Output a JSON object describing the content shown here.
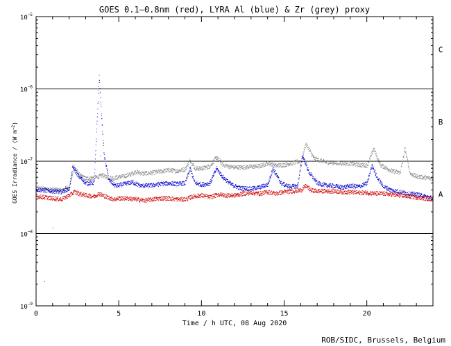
{
  "chart_data": {
    "type": "scatter",
    "title": "GOES 0.1–0.8nm (red), LYRA Al (blue) & Zr (grey) proxy",
    "xlabel": "Time / h UTC, 08 Aug 2020",
    "ylabel": "GOES Irradiance / (W m⁻²)",
    "ylabel_base": "GOES Irradiance / (W m",
    "ylabel_exp": "−2",
    "ylabel_end": ")",
    "credit": "ROB/SIDC, Brussels, Belgium",
    "xlim": [
      0,
      24
    ],
    "ylim": [
      1e-09,
      1e-05
    ],
    "yscale": "log",
    "x_ticks": [
      {
        "value": 0,
        "label": "0"
      },
      {
        "value": 5,
        "label": "5"
      },
      {
        "value": 10,
        "label": "10"
      },
      {
        "value": 15,
        "label": "15"
      },
      {
        "value": 20,
        "label": "20"
      }
    ],
    "y_ticks": [
      {
        "value": 1e-05,
        "base": "10",
        "exp": "−5"
      },
      {
        "value": 1e-06,
        "base": "10",
        "exp": "−6"
      },
      {
        "value": 1e-07,
        "base": "10",
        "exp": "−7"
      },
      {
        "value": 1e-08,
        "base": "10",
        "exp": "−8"
      },
      {
        "value": 1e-09,
        "base": "10",
        "exp": "−9"
      }
    ],
    "flare_levels": [
      {
        "value": 1e-06,
        "label": "C"
      },
      {
        "value": 1e-07,
        "label": "B"
      },
      {
        "value": 1e-08,
        "label": "A"
      }
    ],
    "series": [
      {
        "name": "LYRA Zr proxy",
        "color": "#888888",
        "x": [
          0,
          0.5,
          1,
          1.5,
          2,
          2.3,
          2.6,
          3,
          3.5,
          3.8,
          4,
          4.3,
          4.7,
          5,
          5.5,
          6,
          6.5,
          7,
          7.5,
          8,
          8.5,
          9,
          9.3,
          9.6,
          10,
          10.5,
          10.9,
          11.3,
          11.8,
          12.3,
          13,
          13.5,
          14,
          14.5,
          15,
          15.5,
          16,
          16.3,
          16.8,
          17.5,
          18,
          18.5,
          19,
          19.5,
          20,
          20.4,
          20.8,
          21.5,
          22,
          22.3,
          22.6,
          23,
          23.5,
          24
        ],
        "y": [
          4.3e-08,
          4.2e-08,
          4.1e-08,
          4e-08,
          4.5e-08,
          8.5e-08,
          6.5e-08,
          5.8e-08,
          6e-08,
          6.2e-08,
          6.5e-08,
          6e-08,
          5.9e-08,
          6.1e-08,
          6.4e-08,
          7.2e-08,
          6.8e-08,
          7e-08,
          7.3e-08,
          7.6e-08,
          7.4e-08,
          7.8e-08,
          1.05e-07,
          8e-08,
          8e-08,
          8.6e-08,
          1.15e-07,
          9e-08,
          8.4e-08,
          8.3e-08,
          8.5e-08,
          8.6e-08,
          9.5e-08,
          8.8e-08,
          9e-08,
          9.6e-08,
          1.02e-07,
          1.75e-07,
          1.1e-07,
          9.8e-08,
          9.6e-08,
          9.5e-08,
          9.4e-08,
          9e-08,
          8.8e-08,
          1.5e-07,
          9e-08,
          7.4e-08,
          7e-08,
          1.5e-07,
          6.8e-08,
          6.2e-08,
          6e-08,
          5.8e-08
        ]
      },
      {
        "name": "LYRA Al proxy",
        "color": "#0000cc",
        "x": [
          0,
          0.5,
          1,
          1.5,
          2,
          2.2,
          2.5,
          3,
          3.5,
          3.8,
          3.9,
          4.1,
          4.4,
          4.8,
          5.2,
          5.8,
          6.3,
          7,
          7.5,
          8,
          8.5,
          9,
          9.3,
          9.6,
          10,
          10.5,
          10.9,
          11.3,
          11.8,
          12.3,
          13,
          13.5,
          14,
          14.3,
          14.8,
          15.3,
          15.8,
          16.1,
          16.5,
          17,
          17.5,
          18,
          18.5,
          19,
          19.5,
          20,
          20.3,
          20.6,
          21,
          21.5,
          22,
          22.5,
          23,
          23.5,
          24
        ],
        "y": [
          4.1e-08,
          4e-08,
          3.9e-08,
          3.8e-08,
          4.2e-08,
          8.5e-08,
          6.5e-08,
          5e-08,
          5.1e-08,
          1.55e-06,
          6e-07,
          1.2e-07,
          5.5e-08,
          4.6e-08,
          4.8e-08,
          5.2e-08,
          4.6e-08,
          4.7e-08,
          4.9e-08,
          5e-08,
          4.9e-08,
          5e-08,
          8e-08,
          5e-08,
          4.8e-08,
          5e-08,
          8e-08,
          6e-08,
          4.8e-08,
          4.3e-08,
          4.2e-08,
          4.4e-08,
          4.8e-08,
          8e-08,
          5e-08,
          4.5e-08,
          4.6e-08,
          1.2e-07,
          7e-08,
          5e-08,
          4.7e-08,
          4.6e-08,
          4.4e-08,
          4.6e-08,
          4.5e-08,
          5e-08,
          9e-08,
          6e-08,
          4.5e-08,
          4e-08,
          3.8e-08,
          3.6e-08,
          3.5e-08,
          3.3e-08,
          3.1e-08
        ]
      },
      {
        "name": "GOES 0.1-0.8nm",
        "color": "#cc0000",
        "x": [
          0,
          0.5,
          1,
          1.5,
          2,
          2.3,
          2.6,
          3,
          3.5,
          3.8,
          4,
          4.3,
          4.7,
          5,
          5.5,
          6,
          6.5,
          7,
          7.5,
          8,
          8.5,
          9,
          9.5,
          10,
          10.5,
          11,
          11.5,
          12,
          12.5,
          13,
          13.5,
          14,
          14.5,
          15,
          15.5,
          16,
          16.3,
          16.6,
          17,
          17.5,
          18,
          18.5,
          19,
          19.5,
          20,
          20.5,
          21,
          21.5,
          22,
          22.5,
          23,
          23.5,
          24
        ],
        "y": [
          3.3e-08,
          3.2e-08,
          3.1e-08,
          3e-08,
          3.4e-08,
          3.8e-08,
          3.6e-08,
          3.4e-08,
          3.3e-08,
          3.6e-08,
          3.4e-08,
          3.2e-08,
          3e-08,
          3.1e-08,
          3.1e-08,
          3e-08,
          2.9e-08,
          3e-08,
          3.1e-08,
          3.1e-08,
          3e-08,
          3e-08,
          3.3e-08,
          3.4e-08,
          3.2e-08,
          3.5e-08,
          3.4e-08,
          3.4e-08,
          3.6e-08,
          3.7e-08,
          3.6e-08,
          3.8e-08,
          3.6e-08,
          3.8e-08,
          3.9e-08,
          4e-08,
          4.6e-08,
          4e-08,
          3.9e-08,
          3.9e-08,
          3.9e-08,
          3.8e-08,
          3.8e-08,
          3.7e-08,
          3.7e-08,
          3.6e-08,
          3.6e-08,
          3.5e-08,
          3.4e-08,
          3.3e-08,
          3.2e-08,
          3.1e-08,
          3e-08
        ]
      }
    ],
    "stray_points": [
      {
        "x": 0.5,
        "y": 2.2e-09,
        "color": "#0000cc"
      },
      {
        "x": 1.0,
        "y": 1.2e-08,
        "color": "#0000cc"
      },
      {
        "x": 3.9,
        "y": 1.2e-07,
        "color": "#cc0000"
      }
    ]
  }
}
